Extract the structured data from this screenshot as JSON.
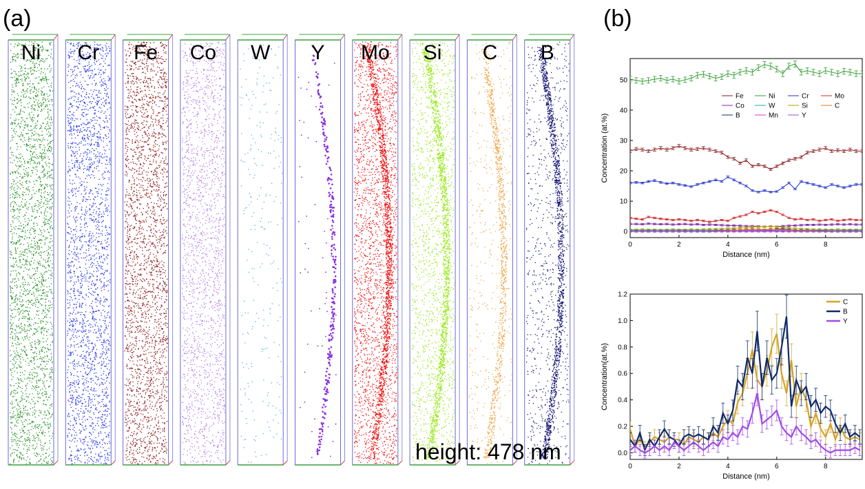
{
  "panel_a": {
    "label": "(a)",
    "height_note": "height: 478 nm",
    "elements": [
      {
        "symbol": "Ni",
        "color": "#1e8a1e"
      },
      {
        "symbol": "Cr",
        "color": "#1f2fe8"
      },
      {
        "symbol": "Fe",
        "color": "#8b1010"
      },
      {
        "symbol": "Co",
        "color": "#b07ae8"
      },
      {
        "symbol": "W",
        "color": "#5aa9d6"
      },
      {
        "symbol": "Y",
        "color": "#8a2be2"
      },
      {
        "symbol": "Mo",
        "color": "#f01010"
      },
      {
        "symbol": "Si",
        "color": "#9be81e"
      },
      {
        "symbol": "C",
        "color": "#f0a64a"
      },
      {
        "symbol": "B",
        "color": "#1a1a7a"
      }
    ]
  },
  "panel_b": {
    "label": "(b)"
  },
  "chart_data": [
    {
      "type": "line",
      "title": "",
      "xlabel": "Distance (nm)",
      "ylabel": "Concentration (at.%)",
      "xlim": [
        0,
        9.5
      ],
      "ylim": [
        -2,
        57
      ],
      "xticks": [
        0,
        2,
        4,
        6,
        8
      ],
      "yticks": [
        0,
        10,
        20,
        30,
        40,
        50
      ],
      "legend_position": "center-right",
      "legend": [
        "Fe",
        "Ni",
        "Cr",
        "Mo",
        "Co",
        "W",
        "Si",
        "C",
        "B",
        "Mn",
        "Y"
      ],
      "x": [
        0,
        0.25,
        0.5,
        0.75,
        1,
        1.25,
        1.5,
        1.75,
        2,
        2.25,
        2.5,
        2.75,
        3,
        3.25,
        3.5,
        3.75,
        4,
        4.25,
        4.5,
        4.75,
        5,
        5.25,
        5.5,
        5.75,
        6,
        6.25,
        6.5,
        6.75,
        7,
        7.25,
        7.5,
        7.75,
        8,
        8.25,
        8.5,
        8.75,
        9,
        9.25,
        9.5
      ],
      "series": [
        {
          "name": "Ni",
          "color": "#2e9b2e",
          "values": [
            50.2,
            49.8,
            49.5,
            49.8,
            50.2,
            50.5,
            49.8,
            50.2,
            49.5,
            50.0,
            50.5,
            51.5,
            51.8,
            51.2,
            50.5,
            51.0,
            52.0,
            51.5,
            52.5,
            53.0,
            52.5,
            54.0,
            55.0,
            54.5,
            53.5,
            52.0,
            54.5,
            55.2,
            52.5,
            53.0,
            52.5,
            52.0,
            53.0,
            52.5,
            52.0,
            52.8,
            52.5,
            52.0,
            52.0
          ]
        },
        {
          "name": "Fe",
          "color": "#8b1a1a",
          "values": [
            26.5,
            27.2,
            27.0,
            26.5,
            27.0,
            27.5,
            27.0,
            27.5,
            28.2,
            27.5,
            27.0,
            27.2,
            27.5,
            27.0,
            26.5,
            26.0,
            24.5,
            24.0,
            22.5,
            23.5,
            21.5,
            22.0,
            21.5,
            20.5,
            21.5,
            22.5,
            23.5,
            24.0,
            24.5,
            26.0,
            26.5,
            27.0,
            27.5,
            26.5,
            26.8,
            26.5,
            27.0,
            26.5,
            26.5
          ]
        },
        {
          "name": "Cr",
          "color": "#2233cc",
          "values": [
            16.0,
            16.2,
            16.0,
            16.5,
            16.8,
            16.2,
            15.8,
            16.0,
            15.5,
            15.2,
            14.8,
            15.5,
            16.0,
            16.5,
            17.0,
            16.5,
            18.0,
            17.0,
            16.0,
            15.0,
            13.5,
            13.0,
            13.5,
            13.0,
            13.2,
            14.5,
            16.0,
            14.0,
            16.5,
            16.0,
            15.5,
            15.0,
            14.5,
            15.5,
            15.0,
            14.5,
            15.0,
            15.5,
            15.5
          ]
        },
        {
          "name": "Mo",
          "color": "#d42a2a",
          "values": [
            4.5,
            4.2,
            4.0,
            4.8,
            4.5,
            4.2,
            4.0,
            3.8,
            4.0,
            3.8,
            3.5,
            3.8,
            3.5,
            3.2,
            3.5,
            3.8,
            3.5,
            4.5,
            5.0,
            5.5,
            6.5,
            6.0,
            6.5,
            7.0,
            6.5,
            5.5,
            4.5,
            4.0,
            4.2,
            3.8,
            4.0,
            3.5,
            3.8,
            4.0,
            3.5,
            3.8,
            4.0,
            3.8,
            3.8
          ]
        },
        {
          "name": "Co",
          "color": "#7a2aa8",
          "values": [
            2.5,
            2.5,
            2.4,
            2.6,
            2.5,
            2.4,
            2.5,
            2.3,
            2.4,
            2.5,
            2.3,
            2.4,
            2.2,
            2.3,
            2.2,
            2.1,
            2.0,
            2.0,
            1.9,
            1.8,
            1.8,
            1.7,
            1.6,
            1.7,
            1.6,
            1.8,
            1.9,
            2.0,
            2.1,
            2.2,
            2.2,
            2.3,
            2.2,
            2.3,
            2.4,
            2.3,
            2.4,
            2.3,
            2.3
          ]
        },
        {
          "name": "Si",
          "color": "#b8a000",
          "values": [
            0.6,
            0.6,
            0.7,
            0.6,
            0.6,
            0.5,
            0.6,
            0.7,
            0.6,
            0.6,
            0.7,
            0.6,
            0.7,
            0.8,
            0.8,
            0.9,
            1.0,
            1.1,
            1.2,
            1.3,
            1.5,
            1.6,
            1.6,
            1.7,
            1.6,
            1.4,
            1.2,
            1.0,
            0.9,
            0.8,
            0.7,
            0.7,
            0.6,
            0.6,
            0.7,
            0.6,
            0.6,
            0.6,
            0.6
          ]
        },
        {
          "name": "W",
          "color": "#1aa8a8",
          "values": [
            0.4,
            0.4,
            0.4,
            0.4,
            0.4,
            0.4,
            0.4,
            0.4,
            0.4,
            0.4,
            0.4,
            0.4,
            0.4,
            0.4,
            0.4,
            0.4,
            0.4,
            0.4,
            0.4,
            0.4,
            0.4,
            0.4,
            0.4,
            0.4,
            0.4,
            0.4,
            0.4,
            0.4,
            0.4,
            0.4,
            0.4,
            0.4,
            0.4,
            0.4,
            0.4,
            0.4,
            0.4,
            0.4,
            0.4
          ]
        },
        {
          "name": "B",
          "color": "#1a2a6a",
          "values": [
            0.1,
            0.1,
            0.1,
            0.1,
            0.1,
            0.1,
            0.1,
            0.1,
            0.1,
            0.1,
            0.1,
            0.1,
            0.1,
            0.1,
            0.2,
            0.3,
            0.4,
            0.5,
            0.5,
            0.6,
            0.8,
            0.7,
            0.6,
            0.7,
            0.8,
            0.9,
            0.6,
            0.4,
            0.3,
            0.3,
            0.2,
            0.2,
            0.2,
            0.1,
            0.1,
            0.1,
            0.1,
            0.1,
            0.1
          ]
        },
        {
          "name": "Mn",
          "color": "#d63ad6",
          "values": [
            0.05,
            0.05,
            0.05,
            0.05,
            0.05,
            0.05,
            0.05,
            0.05,
            0.05,
            0.05,
            0.05,
            0.05,
            0.05,
            0.05,
            0.05,
            0.05,
            0.05,
            0.05,
            0.05,
            0.05,
            0.05,
            0.05,
            0.05,
            0.05,
            0.05,
            0.05,
            0.05,
            0.05,
            0.05,
            0.05,
            0.05,
            0.05,
            0.05,
            0.05,
            0.05,
            0.05,
            0.05,
            0.05,
            0.05
          ]
        },
        {
          "name": "C",
          "color": "#e07a20",
          "values": [
            0.05,
            0.05,
            0.05,
            0.05,
            0.05,
            0.05,
            0.05,
            0.05,
            0.05,
            0.05,
            0.05,
            0.05,
            0.05,
            0.05,
            0.1,
            0.2,
            0.3,
            0.4,
            0.5,
            0.6,
            0.8,
            0.7,
            0.6,
            0.8,
            0.6,
            0.5,
            0.4,
            0.3,
            0.2,
            0.2,
            0.2,
            0.1,
            0.1,
            0.1,
            0.1,
            0.1,
            0.05,
            0.05,
            0.05
          ]
        },
        {
          "name": "Y",
          "color": "#a04ad6",
          "values": [
            0.02,
            0.02,
            0.02,
            0.02,
            0.02,
            0.02,
            0.02,
            0.02,
            0.02,
            0.02,
            0.02,
            0.02,
            0.02,
            0.02,
            0.05,
            0.1,
            0.1,
            0.1,
            0.15,
            0.2,
            0.3,
            0.25,
            0.2,
            0.3,
            0.2,
            0.15,
            0.1,
            0.1,
            0.05,
            0.05,
            0.05,
            0.02,
            0.02,
            0.02,
            0.02,
            0.02,
            0.02,
            0.02,
            0.02
          ]
        }
      ]
    },
    {
      "type": "line",
      "title": "",
      "xlabel": "Distance (nm)",
      "ylabel": "Concentration(at.%)",
      "xlim": [
        0,
        9.5
      ],
      "ylim": [
        -0.05,
        1.2
      ],
      "xticks": [
        0,
        2,
        4,
        6,
        8
      ],
      "yticks": [
        0.0,
        0.2,
        0.4,
        0.6,
        0.8,
        1.0,
        1.2
      ],
      "legend_position": "top-right",
      "legend": [
        "C",
        "B",
        "Y"
      ],
      "x": [
        0,
        0.2,
        0.4,
        0.6,
        0.8,
        1.0,
        1.2,
        1.4,
        1.6,
        1.8,
        2.0,
        2.2,
        2.4,
        2.6,
        2.8,
        3.0,
        3.2,
        3.4,
        3.6,
        3.8,
        4.0,
        4.2,
        4.4,
        4.6,
        4.8,
        5.0,
        5.2,
        5.4,
        5.6,
        5.8,
        6.0,
        6.2,
        6.4,
        6.6,
        6.8,
        7.0,
        7.2,
        7.4,
        7.6,
        7.8,
        8.0,
        8.2,
        8.4,
        8.6,
        8.8,
        9.0,
        9.2,
        9.4
      ],
      "series": [
        {
          "name": "C",
          "color": "#d4a42a",
          "values": [
            0.18,
            0.05,
            0.1,
            0.04,
            0.08,
            0.12,
            0.1,
            0.08,
            0.12,
            0.1,
            0.1,
            0.06,
            0.12,
            0.1,
            0.08,
            0.12,
            0.1,
            0.15,
            0.12,
            0.2,
            0.25,
            0.22,
            0.38,
            0.45,
            0.6,
            0.78,
            0.55,
            0.5,
            0.62,
            0.8,
            0.9,
            0.6,
            0.45,
            0.7,
            0.35,
            0.5,
            0.4,
            0.2,
            0.3,
            0.18,
            0.12,
            0.22,
            0.1,
            0.2,
            0.12,
            0.1,
            0.12,
            0.1
          ]
        },
        {
          "name": "B",
          "color": "#0f2a6a",
          "values": [
            0.1,
            0.05,
            0.15,
            0.02,
            0.1,
            0.05,
            0.12,
            0.18,
            0.12,
            0.1,
            0.05,
            0.12,
            0.14,
            0.12,
            0.14,
            0.12,
            0.1,
            0.2,
            0.15,
            0.3,
            0.22,
            0.32,
            0.55,
            0.5,
            0.72,
            0.6,
            0.92,
            0.5,
            0.72,
            0.55,
            0.6,
            0.8,
            1.03,
            0.35,
            0.55,
            0.45,
            0.5,
            0.35,
            0.4,
            0.3,
            0.35,
            0.32,
            0.22,
            0.15,
            0.22,
            0.12,
            0.15,
            0.12
          ]
        },
        {
          "name": "Y",
          "color": "#a04ae8",
          "values": [
            0.02,
            0.05,
            0.02,
            0.0,
            0.02,
            0.05,
            0.02,
            0.05,
            0.02,
            0.08,
            0.05,
            0.02,
            0.05,
            0.08,
            0.05,
            0.02,
            0.05,
            0.08,
            0.05,
            0.12,
            0.1,
            0.15,
            0.12,
            0.2,
            0.18,
            0.3,
            0.45,
            0.22,
            0.25,
            0.28,
            0.32,
            0.2,
            0.15,
            0.12,
            0.2,
            0.15,
            0.12,
            0.08,
            0.1,
            0.05,
            0.02,
            0.0,
            0.02,
            0.02,
            0.02,
            0.02,
            0.04,
            0.02
          ]
        }
      ]
    }
  ]
}
